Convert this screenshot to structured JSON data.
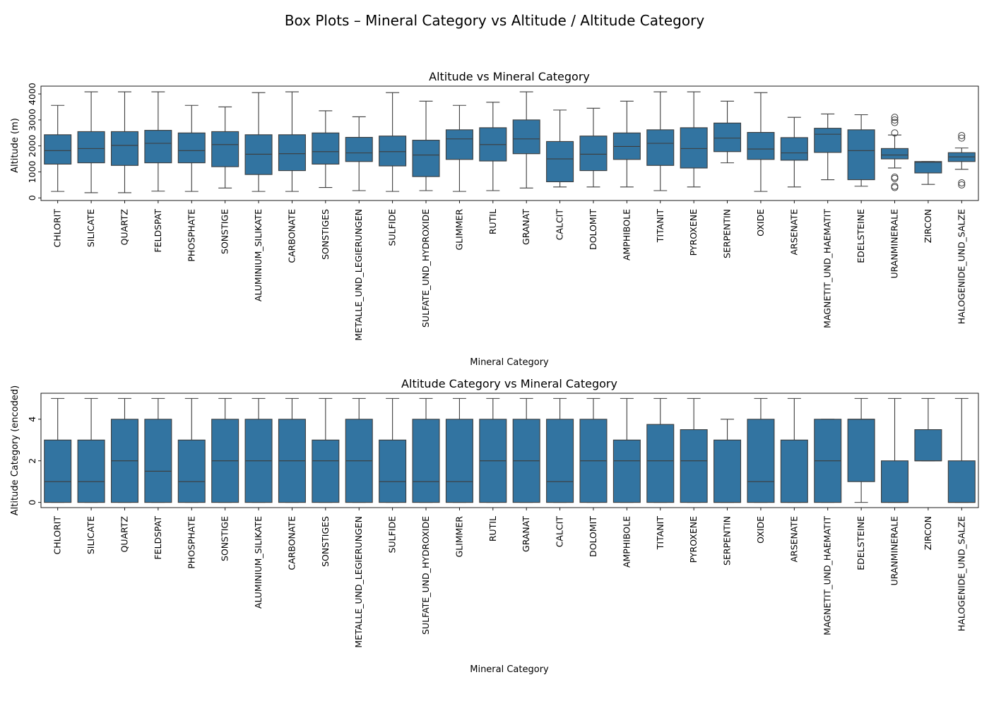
{
  "figure": {
    "title": "Box Plots – Mineral Category vs Altitude / Altitude Category"
  },
  "chart_data": [
    {
      "type": "box",
      "title": "Altitude vs Mineral Category",
      "xlabel": "Mineral Category",
      "ylabel": "Altitude (m)",
      "ylim": [
        -100,
        4300
      ],
      "yticks": [
        0,
        1000,
        2000,
        3000,
        4000
      ],
      "color": "#3274a1",
      "categories": [
        "CHLORIT",
        "SILICATE",
        "QUARTZ",
        "FELDSPAT",
        "PHOSPHATE",
        "SONSTIGE",
        "ALUMINIUM_SILIKATE",
        "CARBONATE",
        "SONSTIGES",
        "METALLE_UND_LEGIERUNGEN",
        "SULFIDE",
        "SULFATE_UND_HYDROXIDE",
        "GLIMMER",
        "RUTIL",
        "GRANAT",
        "CALCIT",
        "DOLOMIT",
        "AMPHIBOLE",
        "TITANIT",
        "PYROXENE",
        "SERPENTIN",
        "OXIDE",
        "ARSENATE",
        "MAGNETIT_UND_HAEMATIT",
        "EDELSTEINE",
        "URANMINERALE",
        "ZIRCON",
        "HALOGENIDE_UND_SALZE"
      ],
      "boxes": [
        {
          "whislo": 250,
          "q1": 1300,
          "med": 1820,
          "q3": 2430,
          "whishi": 3560,
          "fliers": []
        },
        {
          "whislo": 200,
          "q1": 1350,
          "med": 1900,
          "q3": 2550,
          "whishi": 4080,
          "fliers": []
        },
        {
          "whislo": 200,
          "q1": 1250,
          "med": 2020,
          "q3": 2550,
          "whishi": 4080,
          "fliers": []
        },
        {
          "whislo": 260,
          "q1": 1350,
          "med": 2100,
          "q3": 2600,
          "whishi": 4080,
          "fliers": []
        },
        {
          "whislo": 250,
          "q1": 1350,
          "med": 1820,
          "q3": 2500,
          "whishi": 3560,
          "fliers": []
        },
        {
          "whislo": 380,
          "q1": 1200,
          "med": 2050,
          "q3": 2550,
          "whishi": 3500,
          "fliers": []
        },
        {
          "whislo": 250,
          "q1": 900,
          "med": 1680,
          "q3": 2430,
          "whishi": 4050,
          "fliers": []
        },
        {
          "whislo": 250,
          "q1": 1050,
          "med": 1700,
          "q3": 2430,
          "whishi": 4080,
          "fliers": []
        },
        {
          "whislo": 400,
          "q1": 1300,
          "med": 1780,
          "q3": 2500,
          "whishi": 3350,
          "fliers": []
        },
        {
          "whislo": 280,
          "q1": 1400,
          "med": 1730,
          "q3": 2330,
          "whishi": 3120,
          "fliers": []
        },
        {
          "whislo": 250,
          "q1": 1230,
          "med": 1780,
          "q3": 2380,
          "whishi": 4050,
          "fliers": []
        },
        {
          "whislo": 280,
          "q1": 820,
          "med": 1650,
          "q3": 2220,
          "whishi": 3720,
          "fliers": []
        },
        {
          "whislo": 250,
          "q1": 1480,
          "med": 2270,
          "q3": 2620,
          "whishi": 3560,
          "fliers": []
        },
        {
          "whislo": 280,
          "q1": 1420,
          "med": 2050,
          "q3": 2700,
          "whishi": 3680,
          "fliers": []
        },
        {
          "whislo": 380,
          "q1": 1700,
          "med": 2270,
          "q3": 3000,
          "whishi": 4080,
          "fliers": []
        },
        {
          "whislo": 420,
          "q1": 620,
          "med": 1500,
          "q3": 2170,
          "whishi": 3380,
          "fliers": []
        },
        {
          "whislo": 420,
          "q1": 1050,
          "med": 1680,
          "q3": 2380,
          "whishi": 3450,
          "fliers": []
        },
        {
          "whislo": 420,
          "q1": 1480,
          "med": 1980,
          "q3": 2500,
          "whishi": 3720,
          "fliers": []
        },
        {
          "whislo": 280,
          "q1": 1250,
          "med": 2100,
          "q3": 2620,
          "whishi": 4080,
          "fliers": []
        },
        {
          "whislo": 420,
          "q1": 1150,
          "med": 1900,
          "q3": 2700,
          "whishi": 4080,
          "fliers": []
        },
        {
          "whislo": 1350,
          "q1": 1780,
          "med": 2300,
          "q3": 2880,
          "whishi": 3720,
          "fliers": []
        },
        {
          "whislo": 250,
          "q1": 1480,
          "med": 1880,
          "q3": 2520,
          "whishi": 4050,
          "fliers": []
        },
        {
          "whislo": 420,
          "q1": 1450,
          "med": 1730,
          "q3": 2320,
          "whishi": 3100,
          "fliers": []
        },
        {
          "whislo": 700,
          "q1": 1750,
          "med": 2450,
          "q3": 2680,
          "whishi": 3230,
          "fliers": []
        },
        {
          "whislo": 450,
          "q1": 700,
          "med": 1820,
          "q3": 2620,
          "whishi": 3200,
          "fliers": []
        },
        {
          "whislo": 1150,
          "q1": 1500,
          "med": 1650,
          "q3": 1900,
          "whishi": 2420,
          "fliers": [
            2500,
            2900,
            3000,
            3100,
            400,
            450,
            750,
            800
          ]
        },
        {
          "whislo": 520,
          "q1": 960,
          "med": 1370,
          "q3": 1400,
          "whishi": 1400,
          "fliers": []
        },
        {
          "whislo": 1100,
          "q1": 1400,
          "med": 1580,
          "q3": 1740,
          "whishi": 1920,
          "fliers": [
            2300,
            2400,
            500,
            580
          ]
        }
      ]
    },
    {
      "type": "box",
      "title": "Altitude Category vs Mineral Category",
      "xlabel": "Mineral Category",
      "ylabel": "Altitude Category (encoded)",
      "ylim": [
        -0.25,
        5.25
      ],
      "yticks": [
        0,
        2,
        4
      ],
      "color": "#3274a1",
      "categories": [
        "CHLORIT",
        "SILICATE",
        "QUARTZ",
        "FELDSPAT",
        "PHOSPHATE",
        "SONSTIGE",
        "ALUMINIUM_SILIKATE",
        "CARBONATE",
        "SONSTIGES",
        "METALLE_UND_LEGIERUNGEN",
        "SULFIDE",
        "SULFATE_UND_HYDROXIDE",
        "GLIMMER",
        "RUTIL",
        "GRANAT",
        "CALCIT",
        "DOLOMIT",
        "AMPHIBOLE",
        "TITANIT",
        "PYROXENE",
        "SERPENTIN",
        "OXIDE",
        "ARSENATE",
        "MAGNETIT_UND_HAEMATIT",
        "EDELSTEINE",
        "URANMINERALE",
        "ZIRCON",
        "HALOGENIDE_UND_SALZE"
      ],
      "boxes": [
        {
          "whislo": 0,
          "q1": 0,
          "med": 1,
          "q3": 3,
          "whishi": 5,
          "fliers": []
        },
        {
          "whislo": 0,
          "q1": 0,
          "med": 1,
          "q3": 3,
          "whishi": 5,
          "fliers": []
        },
        {
          "whislo": 0,
          "q1": 0,
          "med": 2,
          "q3": 4,
          "whishi": 5,
          "fliers": []
        },
        {
          "whislo": 0,
          "q1": 0,
          "med": 1.5,
          "q3": 4,
          "whishi": 5,
          "fliers": []
        },
        {
          "whislo": 0,
          "q1": 0,
          "med": 1,
          "q3": 3,
          "whishi": 5,
          "fliers": []
        },
        {
          "whislo": 0,
          "q1": 0,
          "med": 2,
          "q3": 4,
          "whishi": 5,
          "fliers": []
        },
        {
          "whislo": 0,
          "q1": 0,
          "med": 2,
          "q3": 4,
          "whishi": 5,
          "fliers": []
        },
        {
          "whislo": 0,
          "q1": 0,
          "med": 2,
          "q3": 4,
          "whishi": 5,
          "fliers": []
        },
        {
          "whislo": 0,
          "q1": 0,
          "med": 2,
          "q3": 3,
          "whishi": 5,
          "fliers": []
        },
        {
          "whislo": 0,
          "q1": 0,
          "med": 2,
          "q3": 4,
          "whishi": 5,
          "fliers": []
        },
        {
          "whislo": 0,
          "q1": 0,
          "med": 1,
          "q3": 3,
          "whishi": 5,
          "fliers": []
        },
        {
          "whislo": 0,
          "q1": 0,
          "med": 1,
          "q3": 4,
          "whishi": 5,
          "fliers": []
        },
        {
          "whislo": 0,
          "q1": 0,
          "med": 1,
          "q3": 4,
          "whishi": 5,
          "fliers": []
        },
        {
          "whislo": 0,
          "q1": 0,
          "med": 2,
          "q3": 4,
          "whishi": 5,
          "fliers": []
        },
        {
          "whislo": 0,
          "q1": 0,
          "med": 2,
          "q3": 4,
          "whishi": 5,
          "fliers": []
        },
        {
          "whislo": 0,
          "q1": 0,
          "med": 1,
          "q3": 4,
          "whishi": 5,
          "fliers": []
        },
        {
          "whislo": 0,
          "q1": 0,
          "med": 2,
          "q3": 4,
          "whishi": 5,
          "fliers": []
        },
        {
          "whislo": 0,
          "q1": 0,
          "med": 2,
          "q3": 3,
          "whishi": 5,
          "fliers": []
        },
        {
          "whislo": 0,
          "q1": 0,
          "med": 2,
          "q3": 3.75,
          "whishi": 5,
          "fliers": []
        },
        {
          "whislo": 0,
          "q1": 0,
          "med": 2,
          "q3": 3.5,
          "whishi": 5,
          "fliers": []
        },
        {
          "whislo": 0,
          "q1": 0,
          "med": 0,
          "q3": 3,
          "whishi": 4,
          "fliers": []
        },
        {
          "whislo": 0,
          "q1": 0,
          "med": 1,
          "q3": 4,
          "whishi": 5,
          "fliers": []
        },
        {
          "whislo": 0,
          "q1": 0,
          "med": 0,
          "q3": 3,
          "whishi": 5,
          "fliers": []
        },
        {
          "whislo": 0,
          "q1": 0,
          "med": 2,
          "q3": 4,
          "whishi": 4,
          "fliers": []
        },
        {
          "whislo": 0,
          "q1": 1,
          "med": 4,
          "q3": 4,
          "whishi": 5,
          "fliers": []
        },
        {
          "whislo": 0,
          "q1": 0,
          "med": 0,
          "q3": 2,
          "whishi": 5,
          "fliers": []
        },
        {
          "whislo": 2,
          "q1": 2,
          "med": 2,
          "q3": 3.5,
          "whishi": 5,
          "fliers": []
        },
        {
          "whislo": 0,
          "q1": 0,
          "med": 0,
          "q3": 2,
          "whishi": 5,
          "fliers": []
        }
      ]
    }
  ]
}
